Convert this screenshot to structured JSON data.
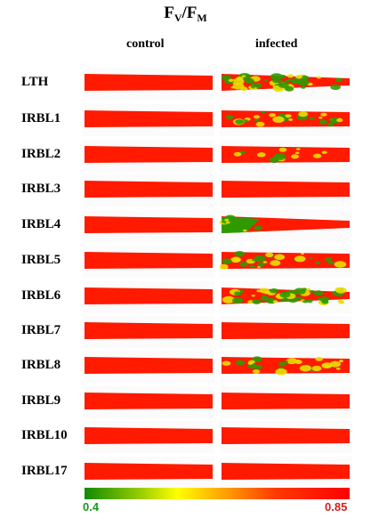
{
  "figure": {
    "title_main": "F",
    "title_sub1": "V",
    "title_slash": "/F",
    "title_sub2": "M",
    "columns": {
      "control": "control",
      "infected": "infected"
    },
    "rows": [
      {
        "label": "LTH",
        "infected_damage": "heavy-mottled"
      },
      {
        "label": "IRBL1",
        "infected_damage": "mottled"
      },
      {
        "label": "IRBL2",
        "infected_damage": "light-mottled"
      },
      {
        "label": "IRBL3",
        "infected_damage": "none"
      },
      {
        "label": "IRBL4",
        "infected_damage": "green-tip"
      },
      {
        "label": "IRBL5",
        "infected_damage": "mottled"
      },
      {
        "label": "IRBL6",
        "infected_damage": "heavy-mottled"
      },
      {
        "label": "IRBL7",
        "infected_damage": "none"
      },
      {
        "label": "IRBL8",
        "infected_damage": "mottled"
      },
      {
        "label": "IRBL9",
        "infected_damage": "none"
      },
      {
        "label": "IRBL10",
        "infected_damage": "none"
      },
      {
        "label": "IRBL17",
        "infected_damage": "none"
      }
    ],
    "scale": {
      "min_label": "0.4",
      "max_label": "0.85",
      "low_color": "#118a00",
      "mid_color": "#ffff00",
      "high_color": "#ff0000"
    },
    "colors": {
      "leaf": "#ff1a00",
      "lesion_green": "#2f9a00",
      "lesion_yellow": "#e8e000"
    }
  }
}
